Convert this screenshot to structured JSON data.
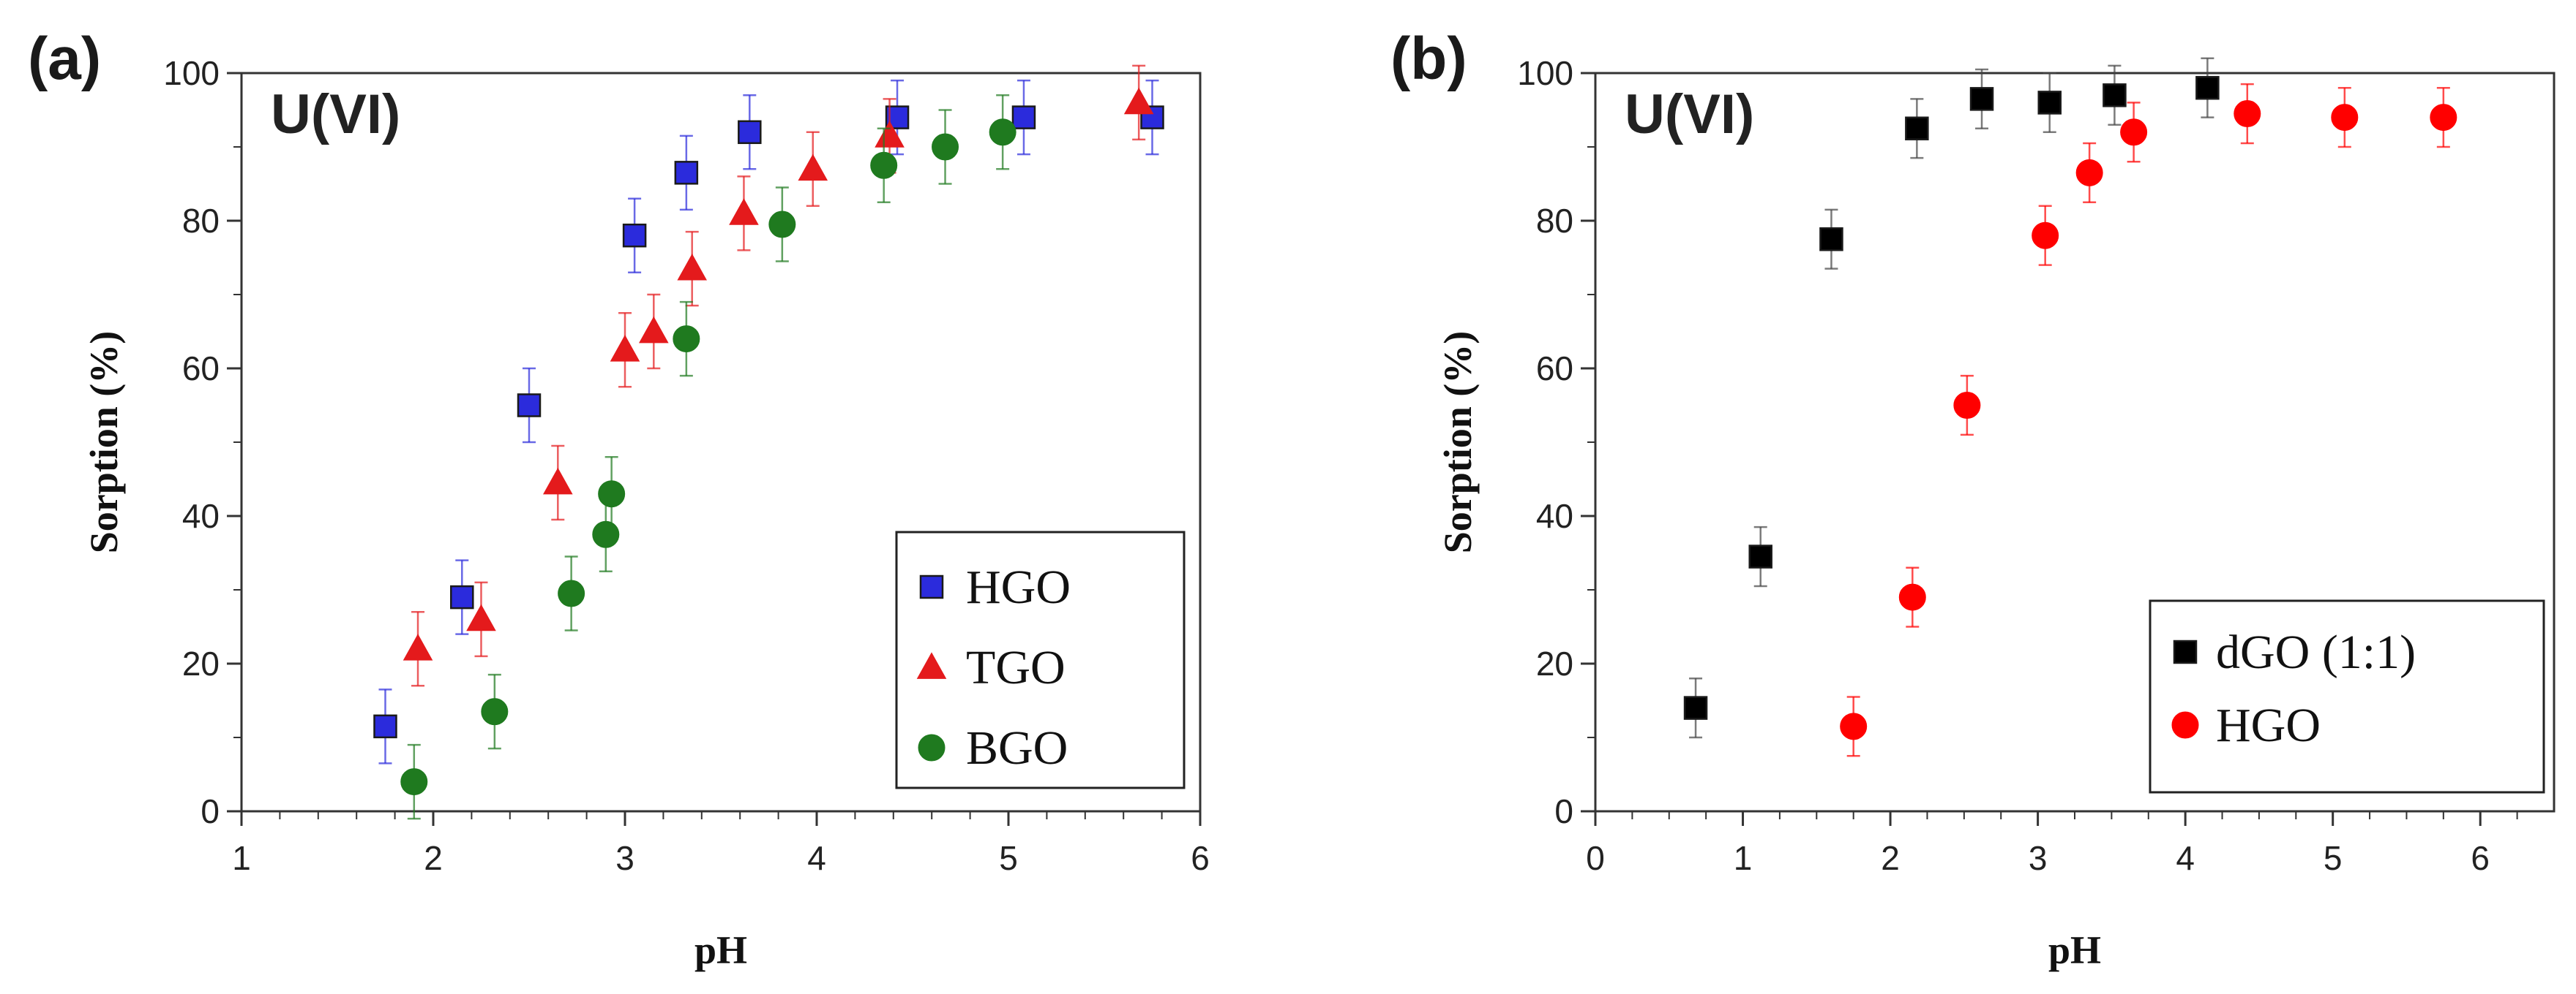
{
  "chart_data": [
    {
      "panel": "(a)",
      "type": "scatter",
      "annotation": "U(VI)",
      "xlabel": "pH",
      "ylabel": "Sorption (%)",
      "xlim": [
        1,
        6
      ],
      "ylim": [
        0,
        100
      ],
      "xticks": [
        1,
        2,
        3,
        4,
        5,
        6
      ],
      "yticks": [
        0,
        20,
        40,
        60,
        80,
        100
      ],
      "grid": false,
      "legend_position": "bottom-right",
      "series": [
        {
          "name": "HGO",
          "marker": "square",
          "color": "#2b2bdc",
          "points": [
            [
              1.75,
              11.5,
              5
            ],
            [
              2.15,
              29,
              5
            ],
            [
              2.5,
              55,
              5
            ],
            [
              3.05,
              78,
              5
            ],
            [
              3.32,
              86.5,
              5
            ],
            [
              3.65,
              92,
              5
            ],
            [
              4.42,
              94,
              5
            ],
            [
              5.08,
              94,
              5
            ],
            [
              5.75,
              94,
              5
            ]
          ]
        },
        {
          "name": "TGO",
          "marker": "triangle",
          "color": "#e41a1c",
          "points": [
            [
              1.92,
              22,
              5
            ],
            [
              2.25,
              26,
              5
            ],
            [
              2.65,
              44.5,
              5
            ],
            [
              3.0,
              62.5,
              5
            ],
            [
              3.15,
              65,
              5
            ],
            [
              3.35,
              73.5,
              5
            ],
            [
              3.62,
              81,
              5
            ],
            [
              3.98,
              87,
              5
            ],
            [
              4.38,
              91.5,
              5
            ],
            [
              5.68,
              96,
              5
            ]
          ]
        },
        {
          "name": "BGO",
          "marker": "circle",
          "color": "#1f7a1f",
          "points": [
            [
              1.9,
              4,
              5
            ],
            [
              2.32,
              13.5,
              5
            ],
            [
              2.72,
              29.5,
              5
            ],
            [
              2.9,
              37.5,
              5
            ],
            [
              2.93,
              43,
              5
            ],
            [
              3.32,
              64,
              5
            ],
            [
              3.82,
              79.5,
              5
            ],
            [
              4.35,
              87.5,
              5
            ],
            [
              4.67,
              90,
              5
            ],
            [
              4.97,
              92,
              5
            ]
          ]
        }
      ]
    },
    {
      "panel": "(b)",
      "type": "scatter",
      "annotation": "U(VI)",
      "xlabel": "pH",
      "ylabel": "Sorption (%)",
      "xlim": [
        0,
        6.5
      ],
      "ylim": [
        0,
        100
      ],
      "xticks": [
        0,
        1,
        2,
        3,
        4,
        5,
        6
      ],
      "yticks": [
        0,
        20,
        40,
        60,
        80,
        100
      ],
      "grid": false,
      "legend_position": "bottom-right",
      "series": [
        {
          "name": "dGO (1:1)",
          "marker": "square",
          "color": "#000000",
          "points": [
            [
              0.68,
              14,
              4
            ],
            [
              1.12,
              34.5,
              4
            ],
            [
              1.6,
              77.5,
              4
            ],
            [
              2.18,
              92.5,
              4
            ],
            [
              2.62,
              96.5,
              4
            ],
            [
              3.08,
              96,
              4
            ],
            [
              3.52,
              97,
              4
            ],
            [
              4.15,
              98,
              4
            ]
          ]
        },
        {
          "name": "HGO",
          "marker": "circle",
          "color": "#ff0000",
          "points": [
            [
              1.75,
              11.5,
              4
            ],
            [
              2.15,
              29,
              4
            ],
            [
              2.52,
              55,
              4
            ],
            [
              3.05,
              78,
              4
            ],
            [
              3.35,
              86.5,
              4
            ],
            [
              3.65,
              92,
              4
            ],
            [
              4.42,
              94.5,
              4
            ],
            [
              5.08,
              94,
              4
            ],
            [
              5.75,
              94,
              4
            ]
          ]
        }
      ]
    }
  ]
}
